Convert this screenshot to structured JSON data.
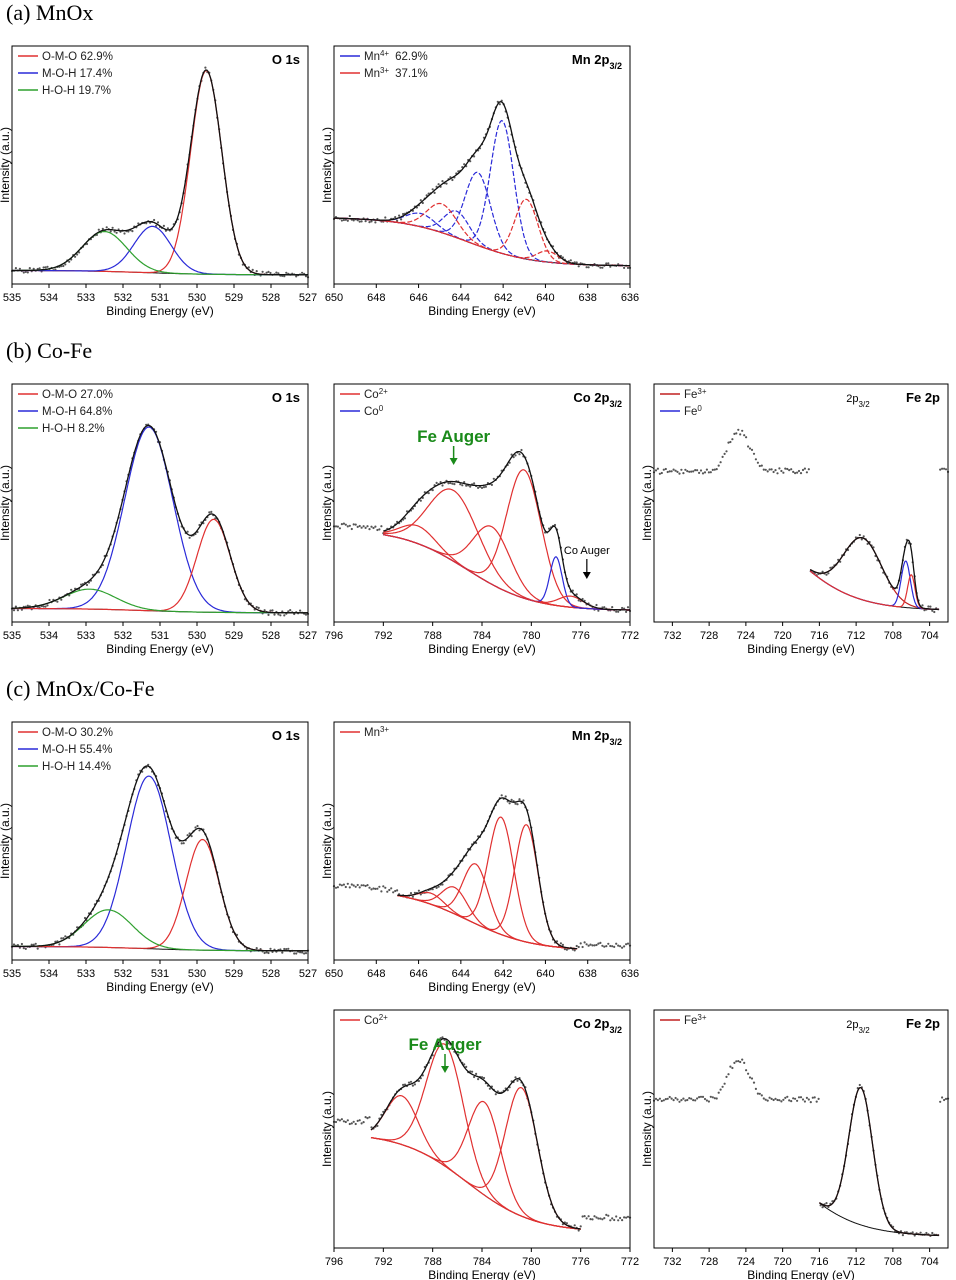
{
  "sections": {
    "a": "(a) MnOx",
    "b": "(b) Co-Fe",
    "c": "(c) MnOx/Co-Fe"
  },
  "colors": {
    "red": "#e03030",
    "blue": "#2a2ad8",
    "green": "#2fa02f",
    "darkred": "#b01818",
    "black": "#111111",
    "data": "#555555"
  },
  "chart_data": [
    {
      "id": "a1",
      "type": "line",
      "label": "O 1s",
      "xlabel": "Binding Energy (eV)",
      "ylabel": "Intensity (a.u.)",
      "xlim": [
        535,
        527
      ],
      "xticks": [
        535,
        534,
        533,
        532,
        531,
        530,
        529,
        528,
        527
      ],
      "legend": [
        {
          "name": "O-M-O 62.9%",
          "color": "#e03030"
        },
        {
          "name": "M-O-H 17.4%",
          "color": "#2a2ad8"
        },
        {
          "name": "H-O-H 19.7%",
          "color": "#2fa02f"
        }
      ],
      "baseline": {
        "left": 0.04,
        "right": 0.02
      },
      "peaks": [
        {
          "center": 529.75,
          "height": 0.92,
          "width": 0.42,
          "color": "#e03030"
        },
        {
          "center": 531.2,
          "height": 0.21,
          "width": 0.5,
          "color": "#2a2ad8"
        },
        {
          "center": 532.5,
          "height": 0.18,
          "width": 0.6,
          "color": "#2fa02f"
        }
      ]
    },
    {
      "id": "a2",
      "type": "line",
      "label": "Mn 2p3/2",
      "xlabel": "Binding Energy (eV)",
      "ylabel": "Intensity (a.u.)",
      "xlim": [
        650,
        636
      ],
      "xticks": [
        650,
        648,
        646,
        644,
        642,
        640,
        638,
        636
      ],
      "legend": [
        {
          "name": "Mn4+",
          "value": "62.9%",
          "color": "#2a2ad8"
        },
        {
          "name": "Mn3+",
          "value": "37.1%",
          "color": "#e03030"
        }
      ],
      "baseline": {
        "left": 0.28,
        "right": 0.06
      },
      "peaks": [
        {
          "center": 642.05,
          "height": 0.6,
          "width": 0.55,
          "color": "#2a2ad8",
          "dash": true
        },
        {
          "center": 643.2,
          "height": 0.33,
          "width": 0.6,
          "color": "#2a2ad8",
          "dash": true
        },
        {
          "center": 644.2,
          "height": 0.12,
          "width": 0.6,
          "color": "#2a2ad8",
          "dash": true
        },
        {
          "center": 645.9,
          "height": 0.06,
          "width": 0.7,
          "color": "#2a2ad8",
          "dash": true
        },
        {
          "center": 640.9,
          "height": 0.27,
          "width": 0.55,
          "color": "#e03030",
          "dash": true
        },
        {
          "center": 644.9,
          "height": 0.13,
          "width": 0.7,
          "color": "#e03030",
          "dash": true
        },
        {
          "center": 639.9,
          "height": 0.05,
          "width": 0.5,
          "color": "#e03030",
          "dash": true
        }
      ]
    },
    {
      "id": "b1",
      "type": "line",
      "label": "O 1s",
      "xlabel": "Binding Energy (eV)",
      "ylabel": "Intensity (a.u.)",
      "xlim": [
        535,
        527
      ],
      "xticks": [
        535,
        534,
        533,
        532,
        531,
        530,
        529,
        528,
        527
      ],
      "legend": [
        {
          "name": "O-M-O 27.0%",
          "color": "#e03030"
        },
        {
          "name": "M-O-H 64.8%",
          "color": "#2a2ad8"
        },
        {
          "name": "H-O-H 8.2%",
          "color": "#2fa02f"
        }
      ],
      "baseline": {
        "left": 0.04,
        "right": 0.02
      },
      "peaks": [
        {
          "center": 531.3,
          "height": 0.83,
          "width": 0.65,
          "color": "#2a2ad8"
        },
        {
          "center": 529.55,
          "height": 0.42,
          "width": 0.45,
          "color": "#e03030"
        },
        {
          "center": 532.9,
          "height": 0.09,
          "width": 0.7,
          "color": "#2fa02f"
        }
      ]
    },
    {
      "id": "b2",
      "type": "line",
      "label": "Co 2p3/2",
      "xlabel": "Binding Energy (eV)",
      "ylabel": "Intensity (a.u.)",
      "xlim": [
        796,
        772
      ],
      "xticks": [
        796,
        792,
        788,
        784,
        780,
        776,
        772
      ],
      "legend": [
        {
          "name": "Co2+",
          "color": "#e03030"
        },
        {
          "name": "Co0",
          "color": "#2a2ad8"
        }
      ],
      "annotations": {
        "auger": "Fe Auger",
        "co_auger": "Co Auger"
      },
      "baseline": {
        "left": 0.4,
        "right": 0.03
      },
      "fit_range": [
        792,
        772
      ],
      "peaks": [
        {
          "center": 780.6,
          "height": 0.58,
          "width": 1.4,
          "color": "#e03030"
        },
        {
          "center": 783.2,
          "height": 0.26,
          "width": 1.5,
          "color": "#e03030"
        },
        {
          "center": 786.3,
          "height": 0.32,
          "width": 2.0,
          "color": "#e03030"
        },
        {
          "center": 789.2,
          "height": 0.08,
          "width": 1.4,
          "color": "#e03030"
        },
        {
          "center": 778.0,
          "height": 0.22,
          "width": 0.5,
          "color": "#2a2ad8"
        },
        {
          "center": 776.8,
          "height": 0.05,
          "width": 1.0,
          "color": "#e03030"
        }
      ]
    },
    {
      "id": "b3",
      "type": "line",
      "label": "Fe 2p",
      "xlabel": "Binding Energy (eV)",
      "ylabel": "Intensity (a.u.)",
      "xlim": [
        734,
        702
      ],
      "xticks": [
        732,
        728,
        724,
        720,
        716,
        712,
        708,
        704
      ],
      "legend": [
        {
          "name": "Fe3+",
          "color": "#c02020"
        },
        {
          "name": "Fe0",
          "color": "#2a2ad8"
        }
      ],
      "annotations": {
        "peak": "2p3/2"
      },
      "baseline": {
        "left": 0.58,
        "right": 0.03
      },
      "fit_range": [
        717,
        703
      ],
      "peaks": [
        {
          "center": 711.3,
          "height": 0.28,
          "width": 2.1,
          "color": "#c02020"
        },
        {
          "center": 706.6,
          "height": 0.21,
          "width": 0.5,
          "color": "#2a2ad8"
        },
        {
          "center": 706.0,
          "height": 0.15,
          "width": 0.4,
          "color": "#e03030"
        }
      ]
    },
    {
      "id": "c1",
      "type": "line",
      "label": "O 1s",
      "xlabel": "Binding Energy (eV)",
      "ylabel": "Intensity (a.u.)",
      "xlim": [
        535,
        527
      ],
      "xticks": [
        535,
        534,
        533,
        532,
        531,
        530,
        529,
        528,
        527
      ],
      "legend": [
        {
          "name": "O-M-O 30.2%",
          "color": "#e03030"
        },
        {
          "name": "M-O-H 55.4%",
          "color": "#2a2ad8"
        },
        {
          "name": "H-O-H 14.4%",
          "color": "#2fa02f"
        }
      ],
      "baseline": {
        "left": 0.04,
        "right": 0.02
      },
      "peaks": [
        {
          "center": 531.3,
          "height": 0.78,
          "width": 0.6,
          "color": "#2a2ad8"
        },
        {
          "center": 529.85,
          "height": 0.5,
          "width": 0.45,
          "color": "#e03030"
        },
        {
          "center": 532.4,
          "height": 0.17,
          "width": 0.65,
          "color": "#2fa02f"
        }
      ]
    },
    {
      "id": "c2",
      "type": "line",
      "label": "Mn 2p3/2",
      "xlabel": "Binding Energy (eV)",
      "ylabel": "Intensity (a.u.)",
      "xlim": [
        650,
        636
      ],
      "xticks": [
        650,
        648,
        646,
        644,
        642,
        640,
        638,
        636
      ],
      "legend": [
        {
          "name": "Mn3+",
          "color": "#e03030"
        }
      ],
      "baseline": {
        "left": 0.3,
        "right": 0.02
      },
      "fit_range": [
        647,
        638.5
      ],
      "peaks": [
        {
          "center": 640.9,
          "height": 0.53,
          "width": 0.55,
          "color": "#e03030"
        },
        {
          "center": 642.1,
          "height": 0.53,
          "width": 0.6,
          "color": "#e03030"
        },
        {
          "center": 643.3,
          "height": 0.27,
          "width": 0.6,
          "color": "#e03030"
        },
        {
          "center": 644.3,
          "height": 0.12,
          "width": 0.6,
          "color": "#e03030"
        },
        {
          "center": 645.4,
          "height": 0.05,
          "width": 0.6,
          "color": "#e03030"
        }
      ]
    },
    {
      "id": "c3",
      "type": "line",
      "label": "Co 2p3/2",
      "xlabel": "Binding Energy (eV)",
      "ylabel": "Intensity (a.u.)",
      "xlim": [
        796,
        772
      ],
      "xticks": [
        796,
        792,
        788,
        784,
        780,
        776,
        772
      ],
      "legend": [
        {
          "name": "Co2+",
          "color": "#e03030"
        }
      ],
      "annotations": {
        "auger": "Fe Auger"
      },
      "baseline": {
        "left": 0.5,
        "right": 0.05
      },
      "fit_range": [
        793,
        776
      ],
      "peaks": [
        {
          "center": 780.8,
          "height": 0.58,
          "width": 1.3,
          "color": "#e03030"
        },
        {
          "center": 783.8,
          "height": 0.42,
          "width": 1.3,
          "color": "#e03030"
        },
        {
          "center": 787.0,
          "height": 0.55,
          "width": 1.5,
          "color": "#e03030"
        },
        {
          "center": 790.5,
          "height": 0.22,
          "width": 1.3,
          "color": "#e03030"
        }
      ]
    },
    {
      "id": "c4",
      "type": "line",
      "label": "Fe 2p",
      "xlabel": "Binding Energy (eV)",
      "ylabel": "Intensity (a.u.)",
      "xlim": [
        734,
        702
      ],
      "xticks": [
        732,
        728,
        724,
        720,
        716,
        712,
        708,
        704
      ],
      "legend": [
        {
          "name": "Fe3+",
          "color": "#c02020"
        }
      ],
      "annotations": {
        "peak": "2p3/2"
      },
      "baseline": {
        "left": 0.6,
        "right": 0.03
      },
      "fit_range": [
        716,
        703
      ],
      "peaks": [
        {
          "center": 711.5,
          "height": 0.62,
          "width": 1.3,
          "color": "#c02020"
        }
      ]
    }
  ]
}
